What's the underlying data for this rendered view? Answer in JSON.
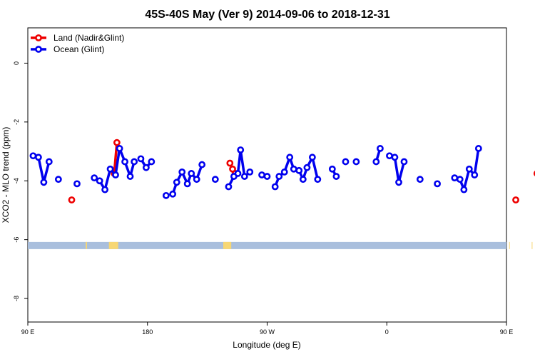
{
  "chart_data": {
    "type": "line",
    "title": "45S-40S May (Ver 9)   2014-09-06 to 2018-12-31",
    "xlabel": "Longitude (deg E)",
    "ylabel": "XCO2 - MLO trend (ppm)",
    "xlim": [
      90,
      450
    ],
    "ylim": [
      -8.8,
      1.2
    ],
    "x_ticks": [
      {
        "value": 90,
        "label": "90 E"
      },
      {
        "value": 180,
        "label": "180"
      },
      {
        "value": 270,
        "label": "90 W"
      },
      {
        "value": 360,
        "label": "0"
      },
      {
        "value": 450,
        "label": "90 E"
      },
      {
        "value": 540,
        "label": "180"
      }
    ],
    "y_ticks": [
      {
        "value": 0,
        "label": "0"
      },
      {
        "value": -2,
        "label": "-2"
      },
      {
        "value": -4,
        "label": "-4"
      },
      {
        "value": -6,
        "label": "-6"
      },
      {
        "value": -8,
        "label": "-8"
      }
    ],
    "legend": {
      "position": "top-left",
      "entries": [
        {
          "label": "Land (Nadir&Glint)",
          "color": "#ee0000"
        },
        {
          "label": "Ocean (Glint)",
          "color": "#0000ee"
        }
      ]
    },
    "land_strip": {
      "y_value": -6.2,
      "ocean_color": "#a9bfdd",
      "land_color": "#f7d774",
      "land_x_ranges": [
        [
          133.5,
          134.5
        ],
        [
          151,
          158
        ],
        [
          237,
          243
        ],
        [
          452,
          454
        ],
        [
          469,
          475
        ]
      ]
    },
    "series": [
      {
        "name": "Land (Nadir&Glint)",
        "color": "#ee0000",
        "points": [
          [
            123,
            -4.65
          ],
          [
            155,
            -3.75
          ],
          [
            157,
            -2.7
          ],
          [
            242,
            -3.4
          ],
          [
            244,
            -3.6
          ],
          [
            246,
            -3.75
          ],
          [
            457,
            -4.65
          ],
          [
            473,
            -3.75
          ],
          [
            475,
            -2.7
          ]
        ],
        "connect_gap": 3.5
      },
      {
        "name": "Ocean (Glint)",
        "color": "#0000ee",
        "points": [
          [
            94,
            -3.15
          ],
          [
            98,
            -3.2
          ],
          [
            102,
            -4.05
          ],
          [
            106,
            -3.35
          ],
          [
            113,
            -3.95
          ],
          [
            127,
            -4.1
          ],
          [
            140,
            -3.9
          ],
          [
            144,
            -4.0
          ],
          [
            148,
            -4.3
          ],
          [
            152,
            -3.6
          ],
          [
            156,
            -3.8
          ],
          [
            159,
            -2.9
          ],
          [
            163,
            -3.35
          ],
          [
            167,
            -3.85
          ],
          [
            170,
            -3.35
          ],
          [
            175,
            -3.25
          ],
          [
            179,
            -3.55
          ],
          [
            183,
            -3.35
          ],
          [
            194,
            -4.5
          ],
          [
            199,
            -4.45
          ],
          [
            202,
            -4.05
          ],
          [
            206,
            -3.7
          ],
          [
            210,
            -4.1
          ],
          [
            213,
            -3.75
          ],
          [
            217,
            -3.95
          ],
          [
            221,
            -3.45
          ],
          [
            231,
            -3.95
          ],
          [
            241,
            -4.2
          ],
          [
            245,
            -3.85
          ],
          [
            248,
            -3.75
          ],
          [
            250,
            -2.95
          ],
          [
            253,
            -3.85
          ],
          [
            257,
            -3.7
          ],
          [
            266,
            -3.8
          ],
          [
            270,
            -3.85
          ],
          [
            276,
            -4.2
          ],
          [
            279,
            -3.85
          ],
          [
            283,
            -3.7
          ],
          [
            287,
            -3.2
          ],
          [
            290,
            -3.6
          ],
          [
            294,
            -3.65
          ],
          [
            297,
            -3.95
          ],
          [
            300,
            -3.55
          ],
          [
            304,
            -3.2
          ],
          [
            308,
            -3.95
          ],
          [
            319,
            -3.6
          ],
          [
            322,
            -3.85
          ],
          [
            329,
            -3.35
          ],
          [
            337,
            -3.35
          ],
          [
            352,
            -3.35
          ],
          [
            355,
            -2.9
          ],
          [
            362,
            -3.15
          ],
          [
            366,
            -3.2
          ],
          [
            369,
            -4.05
          ],
          [
            373,
            -3.35
          ],
          [
            385,
            -3.95
          ],
          [
            398,
            -4.1
          ],
          [
            411,
            -3.9
          ],
          [
            415,
            -3.95
          ],
          [
            418,
            -4.3
          ],
          [
            422,
            -3.6
          ],
          [
            426,
            -3.8
          ],
          [
            429,
            -2.9
          ]
        ],
        "connect_gap": 4.5
      }
    ]
  }
}
